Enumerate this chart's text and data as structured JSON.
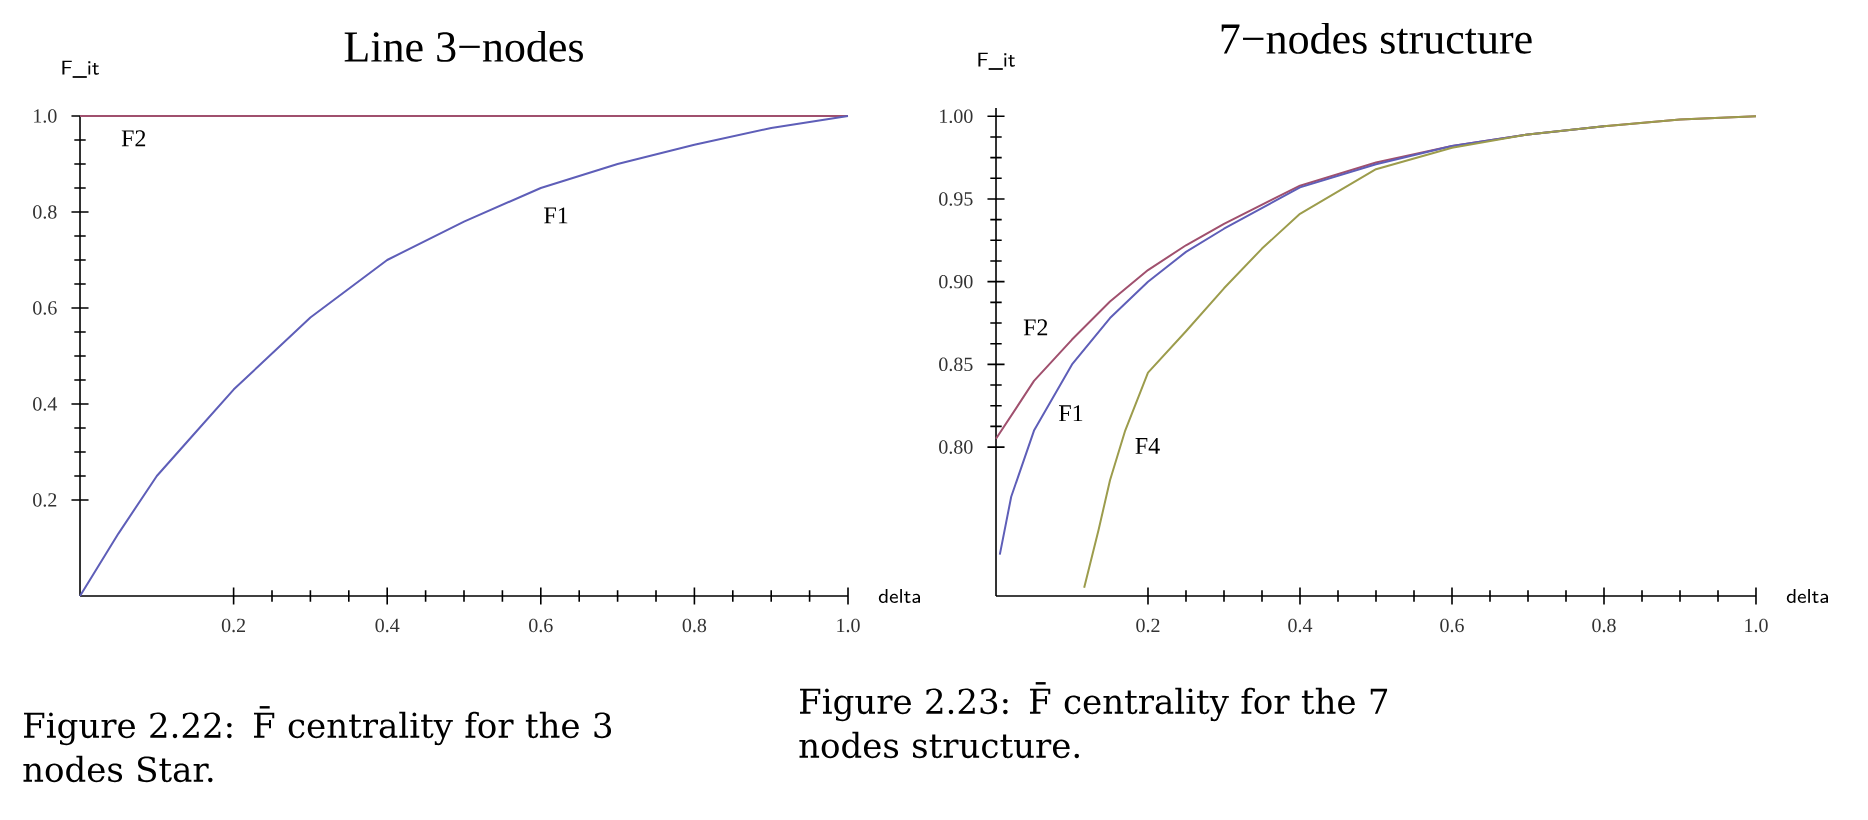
{
  "chart_data": [
    {
      "type": "line",
      "title": "Line 3−nodes",
      "xlabel": "delta",
      "ylabel": "F_it",
      "xlim": [
        0,
        1.0
      ],
      "ylim": [
        0,
        1.0
      ],
      "xticks": [
        0.2,
        0.4,
        0.6,
        0.8,
        {
          "value": 1.0,
          "label": "1.0"
        }
      ],
      "yticks": [
        0.2,
        0.4,
        0.6,
        0.8,
        {
          "value": 1.0,
          "label": "1.0"
        }
      ],
      "grid": false,
      "legend": false,
      "marker": "none",
      "line_style": "solid",
      "series": [
        {
          "name": "F2",
          "color": "#a0506e",
          "x": [
            0,
            1.0
          ],
          "values": [
            1.0,
            1.0
          ]
        },
        {
          "name": "F1",
          "color": "#5e5eb8",
          "x": [
            0,
            0.05,
            0.1,
            0.15,
            0.2,
            0.3,
            0.4,
            0.5,
            0.6,
            0.7,
            0.8,
            0.9,
            1.0
          ],
          "values": [
            0,
            0.13,
            0.25,
            0.34,
            0.43,
            0.58,
            0.7,
            0.78,
            0.85,
            0.9,
            0.94,
            0.975,
            1.0
          ]
        }
      ],
      "annotations": [
        "Figure 2.22: F̄ centrality for the 3 nodes Star."
      ]
    },
    {
      "type": "line",
      "title": "7−nodes structure",
      "xlabel": "delta",
      "ylabel": "F_it",
      "xlim": [
        0,
        1.0
      ],
      "ylim": [
        0.71,
        1.005
      ],
      "xticks": [
        0.2,
        0.4,
        0.6,
        0.8,
        {
          "value": 1.0,
          "label": "1.0"
        }
      ],
      "yticks": [
        {
          "value": 0.8,
          "label": "0.80"
        },
        0.85,
        {
          "value": 0.9,
          "label": "0.90"
        },
        0.95,
        {
          "value": 1.0,
          "label": "1.00"
        }
      ],
      "grid": false,
      "legend": false,
      "marker": "none",
      "line_style": "solid",
      "series": [
        {
          "name": "F2",
          "color": "#a0506e",
          "x": [
            0,
            0.05,
            0.1,
            0.15,
            0.2,
            0.25,
            0.3,
            0.4,
            0.5,
            0.6,
            0.7,
            0.8,
            0.9,
            1.0
          ],
          "values": [
            0.805,
            0.84,
            0.865,
            0.888,
            0.907,
            0.922,
            0.935,
            0.958,
            0.972,
            0.982,
            0.989,
            0.994,
            0.998,
            1.0
          ]
        },
        {
          "name": "F1",
          "color": "#5e5eb8",
          "x": [
            0.005,
            0.02,
            0.05,
            0.1,
            0.15,
            0.2,
            0.25,
            0.3,
            0.4,
            0.5,
            0.6,
            0.7,
            0.8
          ],
          "values": [
            0.735,
            0.77,
            0.81,
            0.85,
            0.878,
            0.9,
            0.918,
            0.932,
            0.957,
            0.971,
            0.982,
            0.989,
            0.994
          ]
        },
        {
          "name": "F4",
          "color": "#9c9c4c",
          "x": [
            0.116,
            0.135,
            0.15,
            0.17,
            0.2,
            0.25,
            0.3,
            0.35,
            0.4,
            0.5,
            0.6,
            0.7,
            0.8,
            0.9,
            1.0
          ],
          "values": [
            0.715,
            0.75,
            0.78,
            0.81,
            0.845,
            0.87,
            0.896,
            0.92,
            0.941,
            0.968,
            0.981,
            0.989,
            0.994,
            0.998,
            1.0
          ]
        }
      ],
      "annotations": [
        "Figure 2.23: F̄ centrality for the 7 nodes structure."
      ]
    }
  ]
}
